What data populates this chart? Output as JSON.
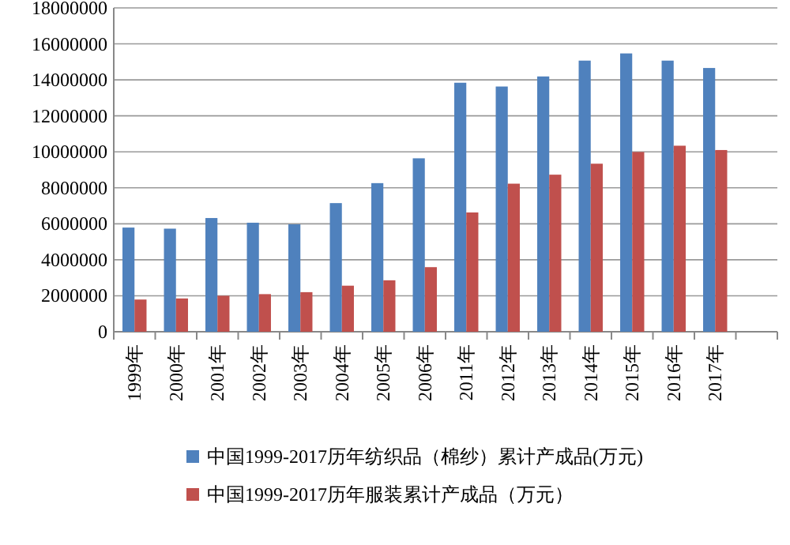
{
  "chart_data": {
    "type": "bar",
    "categories": [
      "1999年",
      "2000年",
      "2001年",
      "2002年",
      "2003年",
      "2004年",
      "2005年",
      "2006年",
      "2011年",
      "2012年",
      "2013年",
      "2014年",
      "2015年",
      "2016年",
      "2017年",
      null
    ],
    "series": [
      {
        "name": "中国1999-2017历年纺织品（棉纱）累计产成品(万元)",
        "color": "#4f81bd",
        "values": [
          5790000,
          5730000,
          6320000,
          6060000,
          5970000,
          7150000,
          8260000,
          9640000,
          13840000,
          13630000,
          14190000,
          15070000,
          15470000,
          15070000,
          14660000,
          null
        ]
      },
      {
        "name": "中国1999-2017历年服装累计产成品（万元）",
        "color": "#c0504d",
        "values": [
          1790000,
          1850000,
          2000000,
          2090000,
          2200000,
          2560000,
          2860000,
          3590000,
          6630000,
          8230000,
          8730000,
          9340000,
          9990000,
          10340000,
          10100000,
          null
        ]
      }
    ],
    "ylim": [
      0,
      18000000
    ],
    "yticks": [
      0,
      2000000,
      4000000,
      6000000,
      8000000,
      10000000,
      12000000,
      14000000,
      16000000,
      18000000
    ],
    "grid": "y",
    "legend": "bottom"
  }
}
